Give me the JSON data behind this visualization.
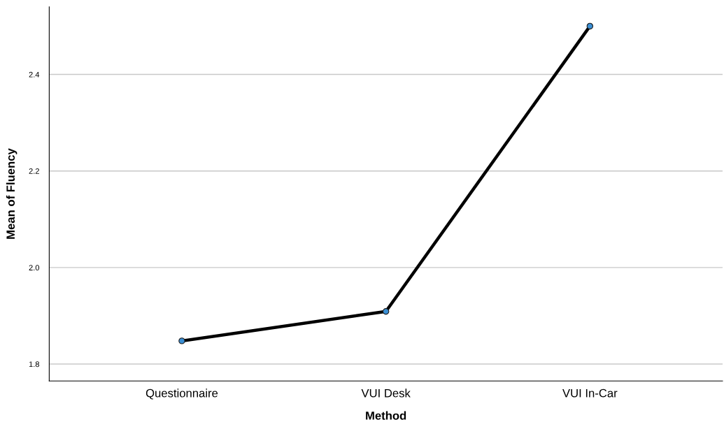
{
  "chart_data": {
    "type": "line",
    "xlabel": "Method",
    "ylabel": "Mean of Fluency",
    "categories": [
      "Questionnaire",
      "VUI Desk",
      "VUI In-Car"
    ],
    "series": [
      {
        "color": "#000000",
        "colors": [
          "#3b8fd4",
          "#3b8fd4",
          "#3b8fd4"
        ],
        "values": [
          1.848,
          1.909,
          2.5
        ]
      }
    ],
    "marker": "circle",
    "line_style": "solid",
    "ylim": [
      1.765,
      2.54
    ],
    "yticks": [
      {
        "value": 1.8,
        "label": "1.8"
      },
      {
        "value": 2.0,
        "label": "2.0"
      },
      {
        "value": 2.2,
        "label": "2.2"
      },
      {
        "value": 2.4,
        "label": "2.4"
      }
    ],
    "grid": "y",
    "legend": false
  }
}
